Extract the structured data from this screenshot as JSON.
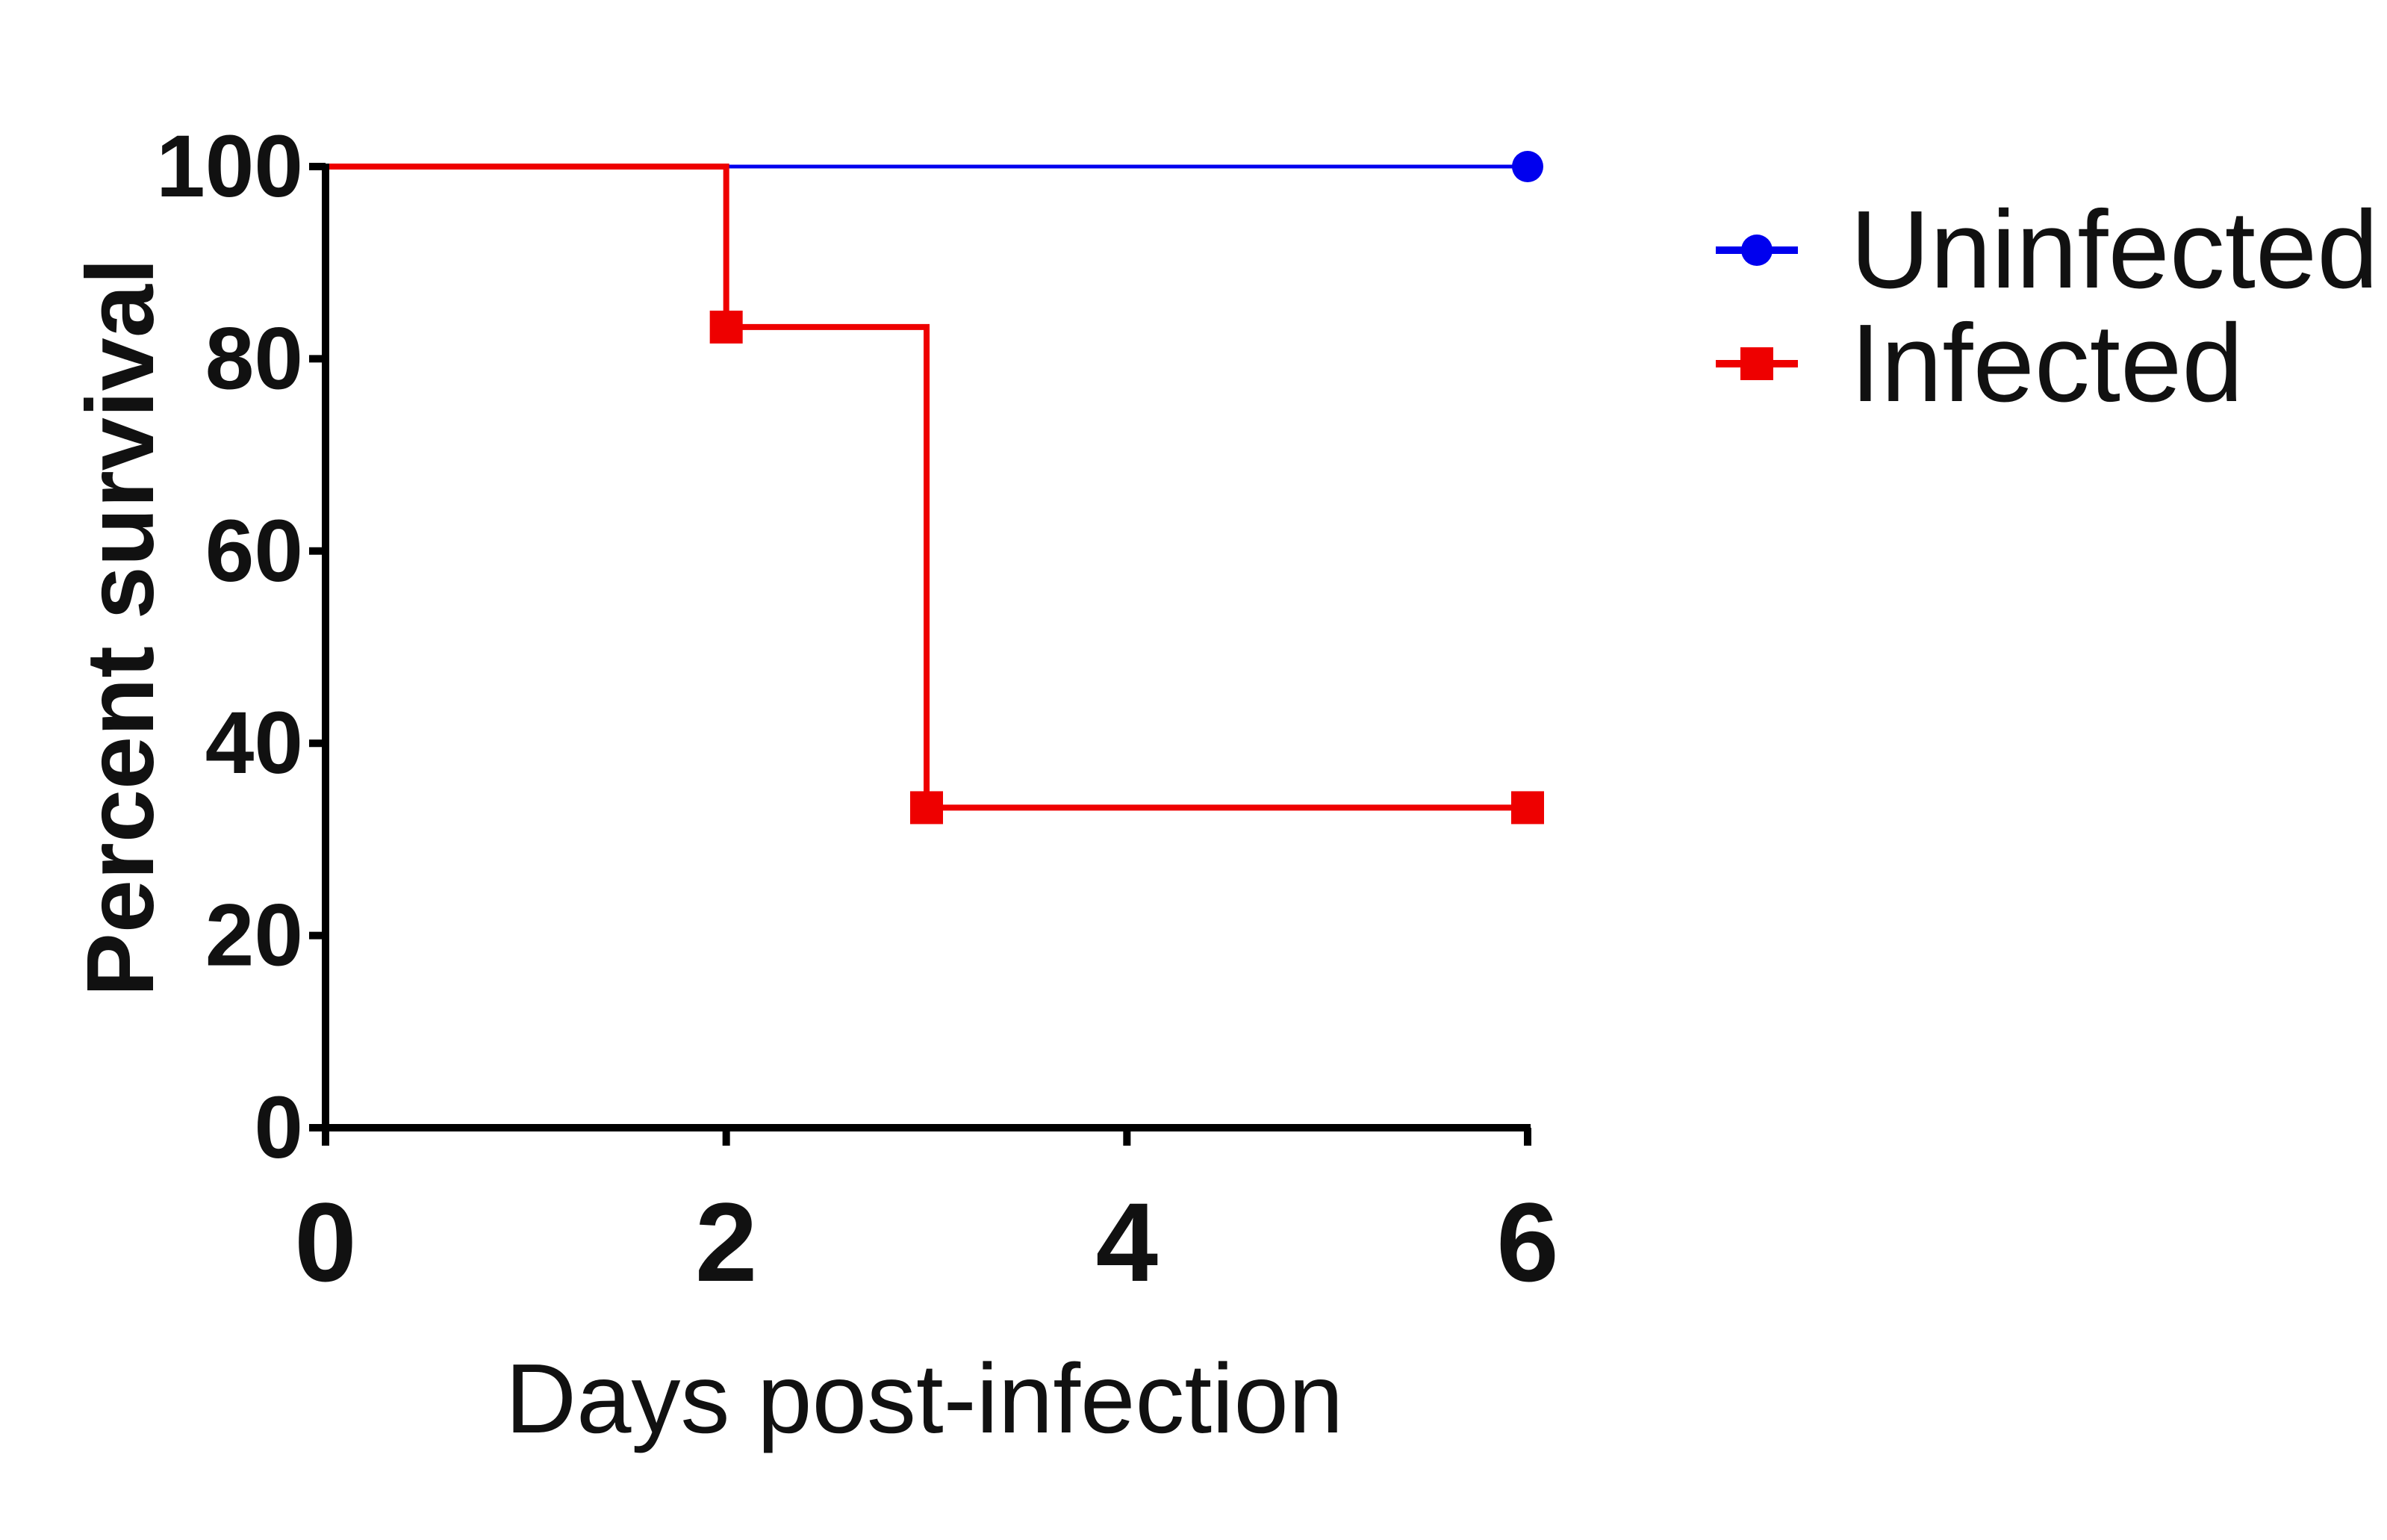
{
  "chart_data": {
    "type": "line",
    "step": true,
    "xlabel": "Days post-infection",
    "ylabel": "Percent survival",
    "xlim": [
      0,
      6
    ],
    "ylim": [
      0,
      100
    ],
    "xticks": [
      0,
      2,
      4,
      6
    ],
    "yticks": [
      0,
      20,
      40,
      60,
      80,
      100
    ],
    "xtick_labels": [
      "0",
      "2",
      "4",
      "6"
    ],
    "ytick_labels": [
      "0",
      "20",
      "40",
      "60",
      "80",
      "100"
    ],
    "grid": false,
    "legend_position": "top-right, outside plot",
    "series": [
      {
        "name": "Uninfected",
        "color": "#0000ee",
        "marker": "circle",
        "x": [
          0,
          6
        ],
        "y": [
          100,
          100
        ],
        "marker_x": [
          6
        ],
        "marker_y": [
          100
        ]
      },
      {
        "name": "Infected",
        "color": "#ee0000",
        "marker": "square",
        "x": [
          0,
          2,
          3,
          6
        ],
        "y": [
          100,
          83.3,
          33.3,
          33.3
        ],
        "marker_x": [
          2,
          3,
          6
        ],
        "marker_y": [
          83.3,
          33.3,
          33.3
        ]
      }
    ]
  }
}
